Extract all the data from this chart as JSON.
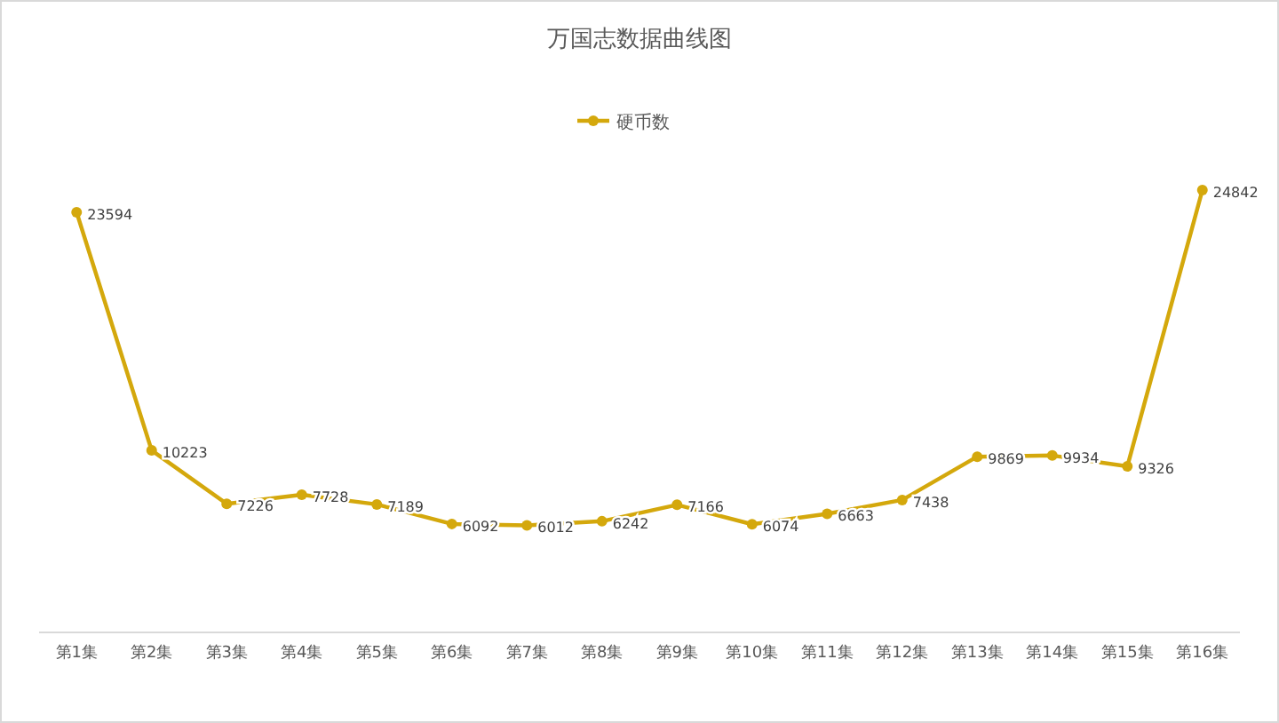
{
  "chart_data": {
    "type": "line",
    "title": "万国志数据曲线图",
    "categories": [
      "第1集",
      "第2集",
      "第3集",
      "第4集",
      "第5集",
      "第6集",
      "第7集",
      "第8集",
      "第9集",
      "第10集",
      "第11集",
      "第12集",
      "第13集",
      "第14集",
      "第15集",
      "第16集"
    ],
    "series": [
      {
        "name": "硬币数",
        "color": "#d4a80c",
        "values": [
          23594,
          10223,
          7226,
          7728,
          7189,
          6092,
          6012,
          6242,
          7166,
          6074,
          6663,
          7438,
          9869,
          9934,
          9326,
          24842
        ]
      }
    ],
    "data_labels": true,
    "legend": "top",
    "marker": "circle",
    "line_style": "solid",
    "grid": false
  }
}
